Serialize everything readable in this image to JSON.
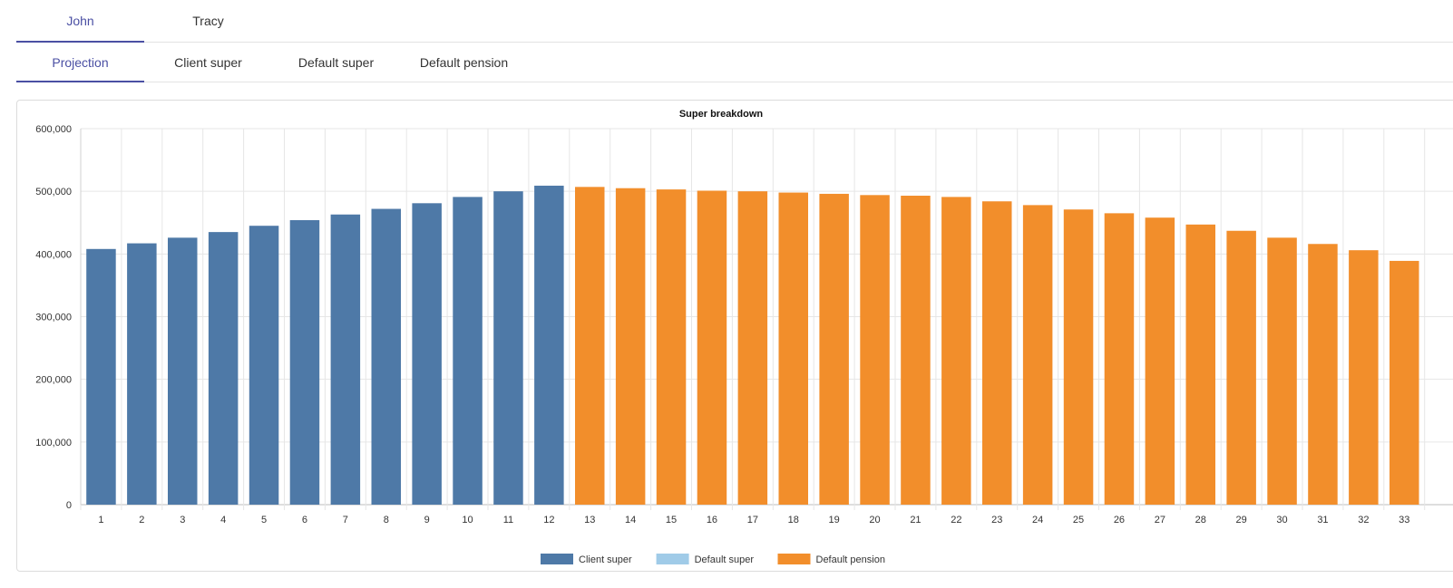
{
  "tabs_person": [
    {
      "label": "John",
      "active": true
    },
    {
      "label": "Tracy",
      "active": false
    }
  ],
  "tabs_sub": [
    {
      "label": "Projection",
      "active": true
    },
    {
      "label": "Client super",
      "active": false
    },
    {
      "label": "Default super",
      "active": false
    },
    {
      "label": "Default pension",
      "active": false
    }
  ],
  "chart_data": {
    "type": "bar",
    "title": "Super breakdown",
    "xlabel": "",
    "ylabel": "",
    "ylim": [
      0,
      600000
    ],
    "yticks": [
      "0",
      "100,000",
      "200,000",
      "300,000",
      "400,000",
      "500,000",
      "600,000"
    ],
    "grid": true,
    "legend_position": "bottom",
    "categories": [
      "1",
      "2",
      "3",
      "4",
      "5",
      "6",
      "7",
      "8",
      "9",
      "10",
      "11",
      "12",
      "13",
      "14",
      "15",
      "16",
      "17",
      "18",
      "19",
      "20",
      "21",
      "22",
      "23",
      "24",
      "25",
      "26",
      "27",
      "28",
      "29",
      "30",
      "31",
      "32",
      "33"
    ],
    "series": [
      {
        "name": "Client super",
        "color": "#4e79a7",
        "values": [
          408000,
          417000,
          426000,
          435000,
          445000,
          454000,
          463000,
          472000,
          481000,
          491000,
          500000,
          509000,
          0,
          0,
          0,
          0,
          0,
          0,
          0,
          0,
          0,
          0,
          0,
          0,
          0,
          0,
          0,
          0,
          0,
          0,
          0,
          0,
          0
        ]
      },
      {
        "name": "Default super",
        "color": "#a0cbe8",
        "values": [
          0,
          0,
          0,
          0,
          0,
          0,
          0,
          0,
          0,
          0,
          0,
          0,
          0,
          0,
          0,
          0,
          0,
          0,
          0,
          0,
          0,
          0,
          0,
          0,
          0,
          0,
          0,
          0,
          0,
          0,
          0,
          0,
          0
        ]
      },
      {
        "name": "Default pension",
        "color": "#f28e2b",
        "values": [
          0,
          0,
          0,
          0,
          0,
          0,
          0,
          0,
          0,
          0,
          0,
          0,
          507000,
          505000,
          503000,
          501000,
          500000,
          498000,
          496000,
          494000,
          493000,
          491000,
          484000,
          478000,
          471000,
          465000,
          458000,
          447000,
          437000,
          426000,
          416000,
          406000,
          389000
        ]
      }
    ]
  }
}
